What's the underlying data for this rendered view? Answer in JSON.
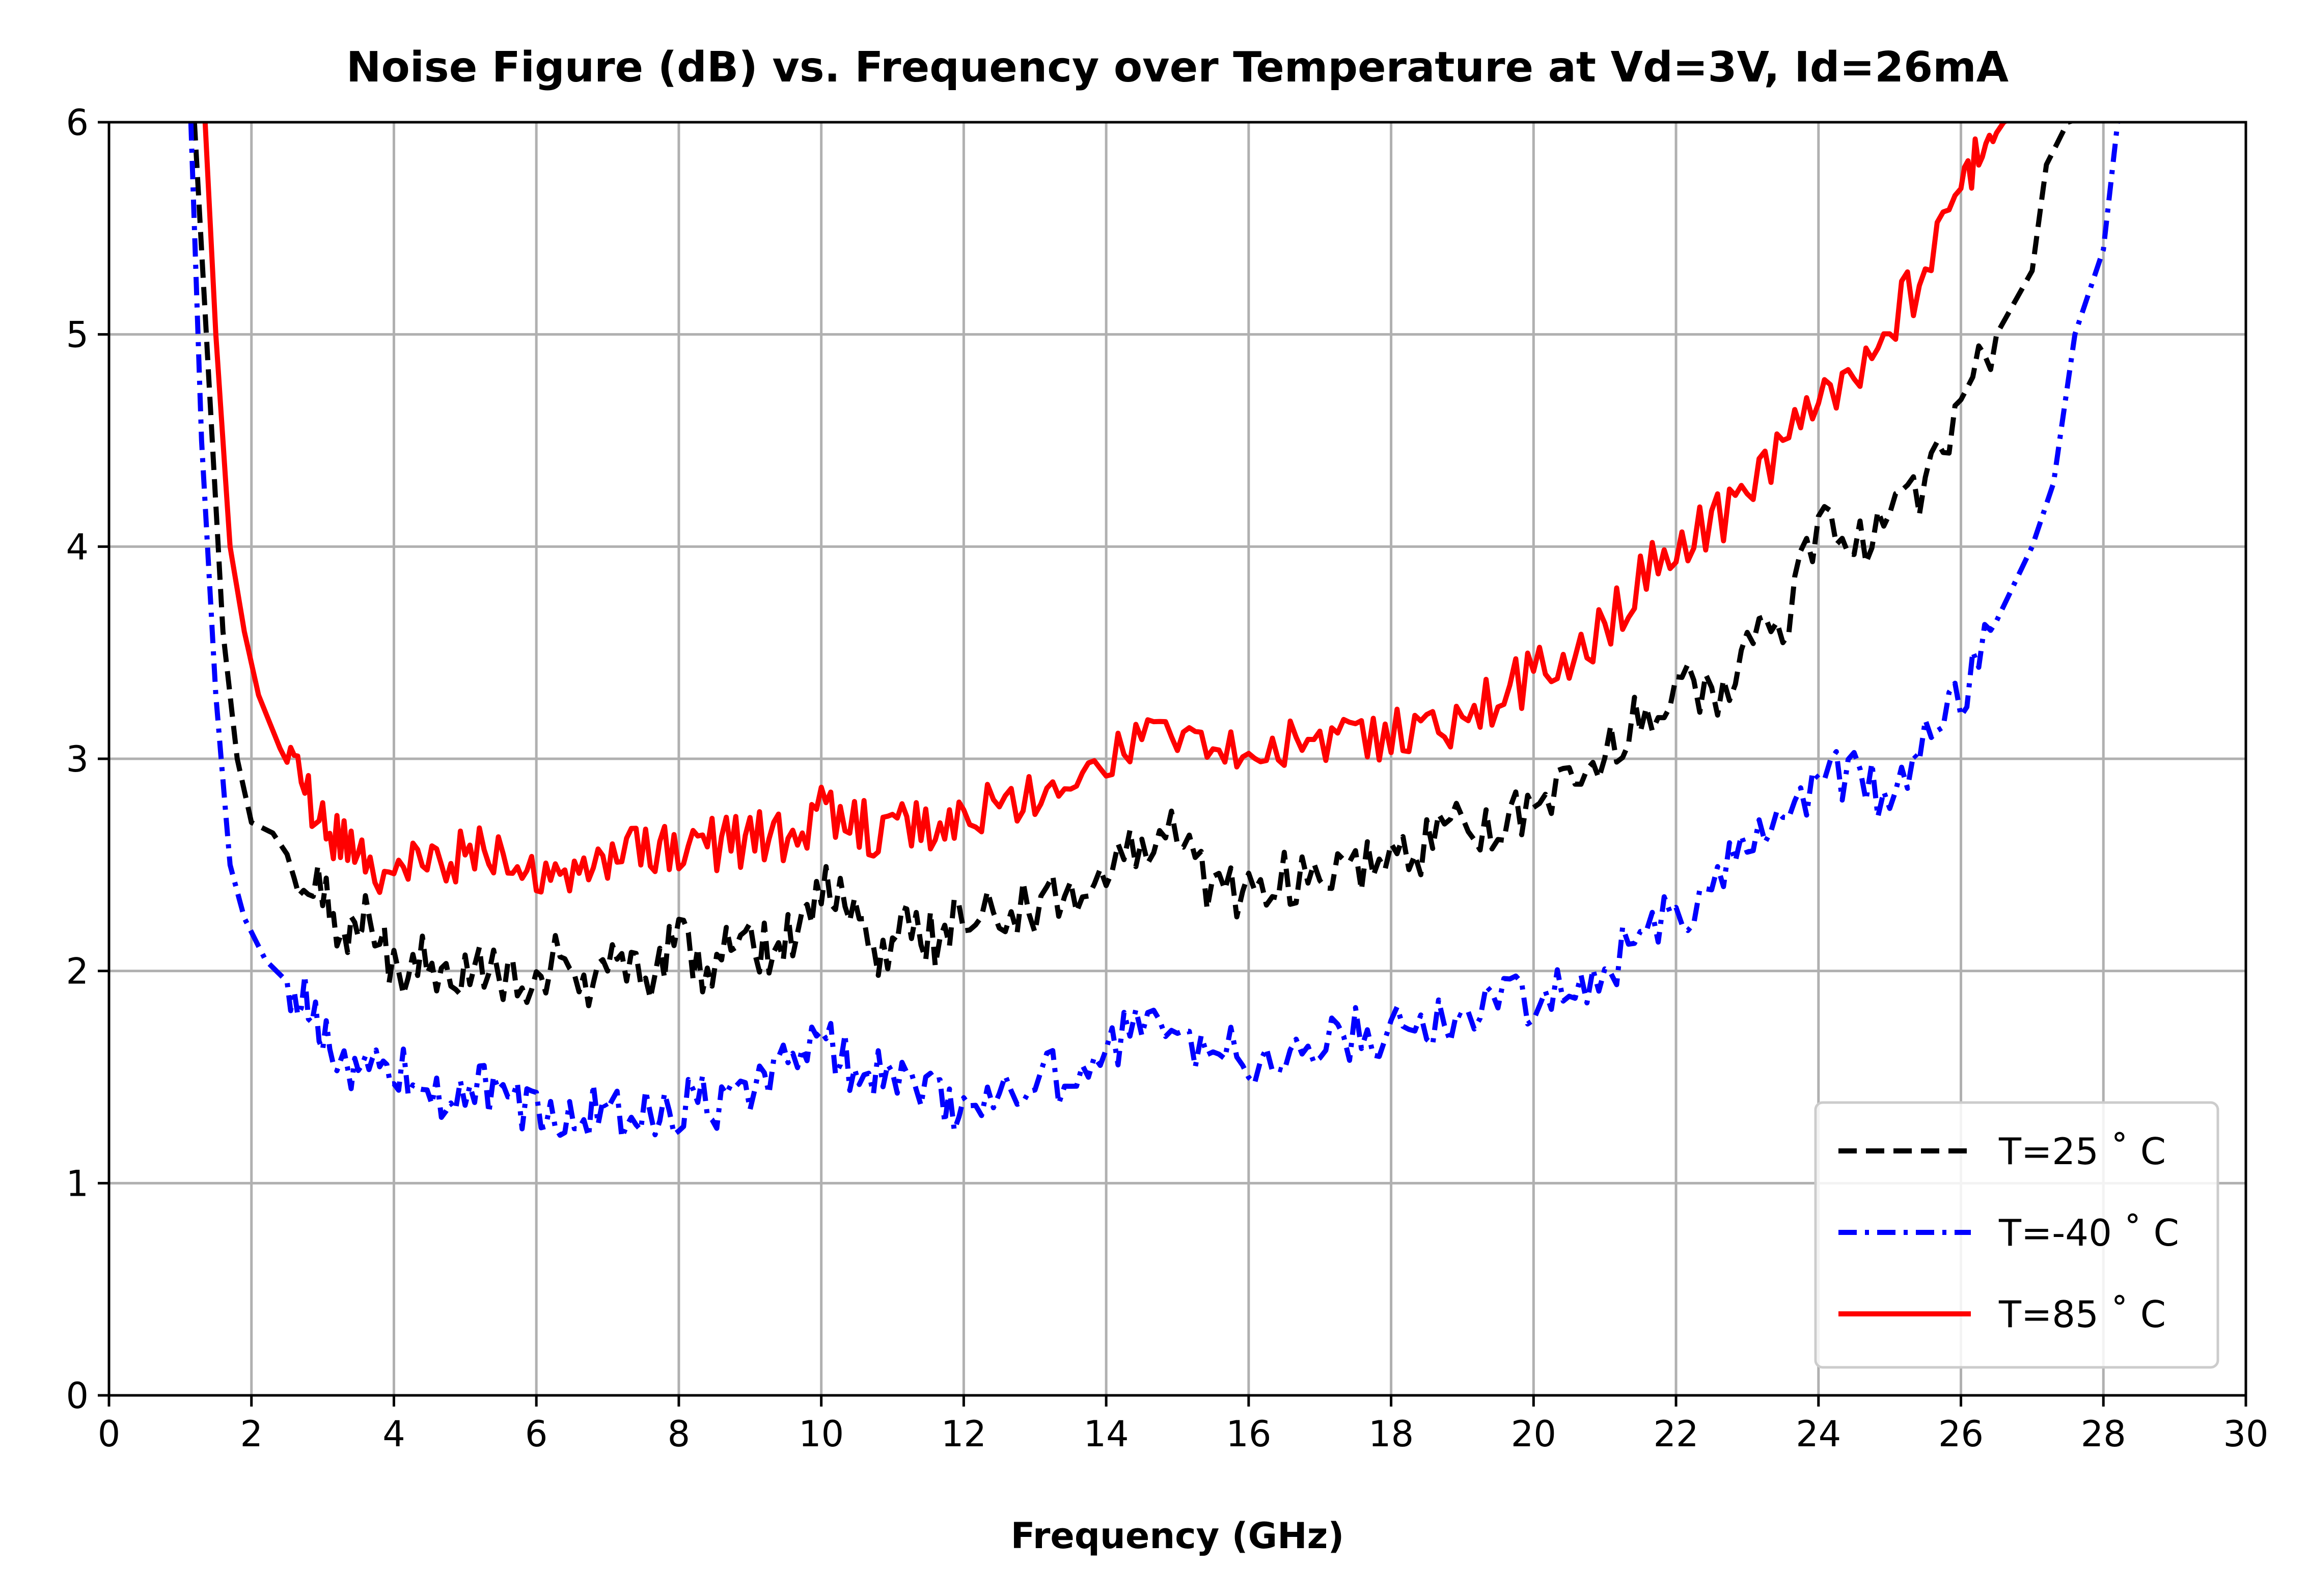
{
  "chart_data": {
    "type": "line",
    "title": "Noise Figure (dB) vs. Frequency over Temperature at Vd=3V, Id=26mA",
    "xlabel": "Frequency (GHz)",
    "ylabel": "",
    "xlim": [
      0,
      30
    ],
    "ylim": [
      0,
      6
    ],
    "xticks": [
      0,
      2,
      4,
      6,
      8,
      10,
      12,
      14,
      16,
      18,
      20,
      22,
      24,
      26,
      28,
      30
    ],
    "yticks": [
      0,
      1,
      2,
      3,
      4,
      5,
      6
    ],
    "grid": true,
    "legend_position": "bottom-right",
    "series": [
      {
        "name": "T=25 ˚ C",
        "color": "#000000",
        "dash": "dashed",
        "x": [
          1.2,
          1.4,
          1.6,
          1.8,
          2.0,
          2.3,
          2.6,
          3.0,
          3.3,
          3.6,
          4.0,
          4.4,
          4.8,
          5.2,
          5.6,
          6.0,
          6.4,
          6.8,
          7.2,
          7.6,
          8.0,
          8.4,
          8.8,
          9.2,
          9.6,
          10.0,
          10.4,
          10.8,
          11.2,
          11.6,
          12.0,
          12.5,
          13.0,
          13.5,
          14.0,
          14.5,
          15.0,
          15.5,
          16.0,
          16.5,
          17.0,
          17.5,
          18.0,
          18.5,
          19.0,
          19.5,
          20.0,
          20.5,
          21.0,
          21.5,
          22.0,
          22.5,
          23.0,
          23.5,
          24.0,
          24.5,
          25.0,
          25.5,
          26.0,
          26.5,
          27.0,
          27.2,
          27.5,
          28.0
        ],
        "y": [
          6.0,
          4.8,
          3.6,
          3.0,
          2.7,
          2.65,
          2.5,
          2.35,
          2.15,
          2.3,
          2.0,
          2.05,
          2.0,
          2.05,
          1.95,
          1.95,
          2.15,
          1.9,
          2.1,
          1.95,
          2.15,
          2.0,
          2.2,
          2.1,
          2.2,
          2.4,
          2.3,
          2.05,
          2.2,
          2.15,
          2.25,
          2.3,
          2.3,
          2.35,
          2.5,
          2.55,
          2.7,
          2.35,
          2.4,
          2.45,
          2.4,
          2.5,
          2.5,
          2.6,
          2.7,
          2.7,
          2.8,
          2.85,
          3.0,
          3.2,
          3.35,
          3.3,
          3.5,
          3.6,
          4.1,
          4.0,
          4.15,
          4.3,
          4.7,
          5.0,
          5.3,
          5.8,
          6.0,
          6.05
        ]
      },
      {
        "name": "T=-40 ˚ C",
        "color": "#0000ff",
        "dash": "dashdot",
        "x": [
          1.15,
          1.3,
          1.5,
          1.7,
          1.9,
          2.2,
          2.5,
          2.8,
          3.1,
          3.4,
          3.7,
          4.0,
          4.4,
          4.8,
          5.2,
          5.6,
          6.0,
          6.4,
          6.8,
          7.2,
          7.6,
          8.0,
          8.4,
          8.8,
          9.2,
          9.6,
          10.0,
          10.4,
          10.8,
          11.2,
          11.6,
          12.0,
          12.5,
          13.0,
          13.5,
          14.0,
          14.5,
          15.0,
          15.5,
          16.0,
          16.5,
          17.0,
          17.5,
          18.0,
          18.5,
          19.0,
          19.5,
          20.0,
          20.5,
          21.0,
          21.5,
          22.0,
          22.5,
          23.0,
          23.5,
          24.0,
          24.5,
          25.0,
          25.5,
          26.0,
          26.5,
          27.0,
          27.3,
          27.6,
          28.0,
          28.2
        ],
        "y": [
          6.0,
          4.5,
          3.3,
          2.5,
          2.25,
          2.05,
          1.95,
          1.85,
          1.7,
          1.5,
          1.55,
          1.55,
          1.45,
          1.4,
          1.45,
          1.4,
          1.35,
          1.3,
          1.35,
          1.3,
          1.35,
          1.35,
          1.4,
          1.35,
          1.5,
          1.55,
          1.7,
          1.55,
          1.5,
          1.45,
          1.4,
          1.35,
          1.45,
          1.5,
          1.5,
          1.6,
          1.75,
          1.7,
          1.65,
          1.6,
          1.6,
          1.65,
          1.7,
          1.7,
          1.75,
          1.8,
          1.85,
          1.85,
          1.9,
          1.95,
          2.25,
          2.25,
          2.4,
          2.55,
          2.7,
          2.9,
          2.95,
          2.8,
          3.1,
          3.3,
          3.65,
          4.0,
          4.3,
          5.0,
          5.4,
          6.0
        ]
      },
      {
        "name": "T=85 ˚ C",
        "color": "#ff0000",
        "dash": "solid",
        "x": [
          1.35,
          1.5,
          1.7,
          1.9,
          2.1,
          2.4,
          2.7,
          3.0,
          3.3,
          3.6,
          4.0,
          4.4,
          4.8,
          5.2,
          5.6,
          6.0,
          6.4,
          6.8,
          7.2,
          7.6,
          8.0,
          8.4,
          8.8,
          9.2,
          9.6,
          10.0,
          10.4,
          10.8,
          11.2,
          11.6,
          12.0,
          12.5,
          13.0,
          13.5,
          14.0,
          14.5,
          15.0,
          15.5,
          16.0,
          16.5,
          17.0,
          17.5,
          18.0,
          18.5,
          19.0,
          19.5,
          20.0,
          20.5,
          21.0,
          21.5,
          22.0,
          22.5,
          23.0,
          23.5,
          24.0,
          24.5,
          25.0,
          25.5,
          26.0,
          26.3,
          26.6,
          26.9
        ],
        "y": [
          6.0,
          5.0,
          4.0,
          3.6,
          3.3,
          3.05,
          2.85,
          2.7,
          2.6,
          2.55,
          2.45,
          2.5,
          2.5,
          2.6,
          2.55,
          2.5,
          2.5,
          2.45,
          2.55,
          2.55,
          2.6,
          2.6,
          2.6,
          2.65,
          2.6,
          2.75,
          2.7,
          2.65,
          2.7,
          2.7,
          2.75,
          2.8,
          2.85,
          2.9,
          3.0,
          3.1,
          3.05,
          3.0,
          3.0,
          3.05,
          3.05,
          3.1,
          3.1,
          3.15,
          3.2,
          3.3,
          3.4,
          3.5,
          3.6,
          3.85,
          4.0,
          4.1,
          4.25,
          4.45,
          4.7,
          4.85,
          5.05,
          5.3,
          5.7,
          5.85,
          6.0,
          6.05
        ]
      }
    ]
  }
}
